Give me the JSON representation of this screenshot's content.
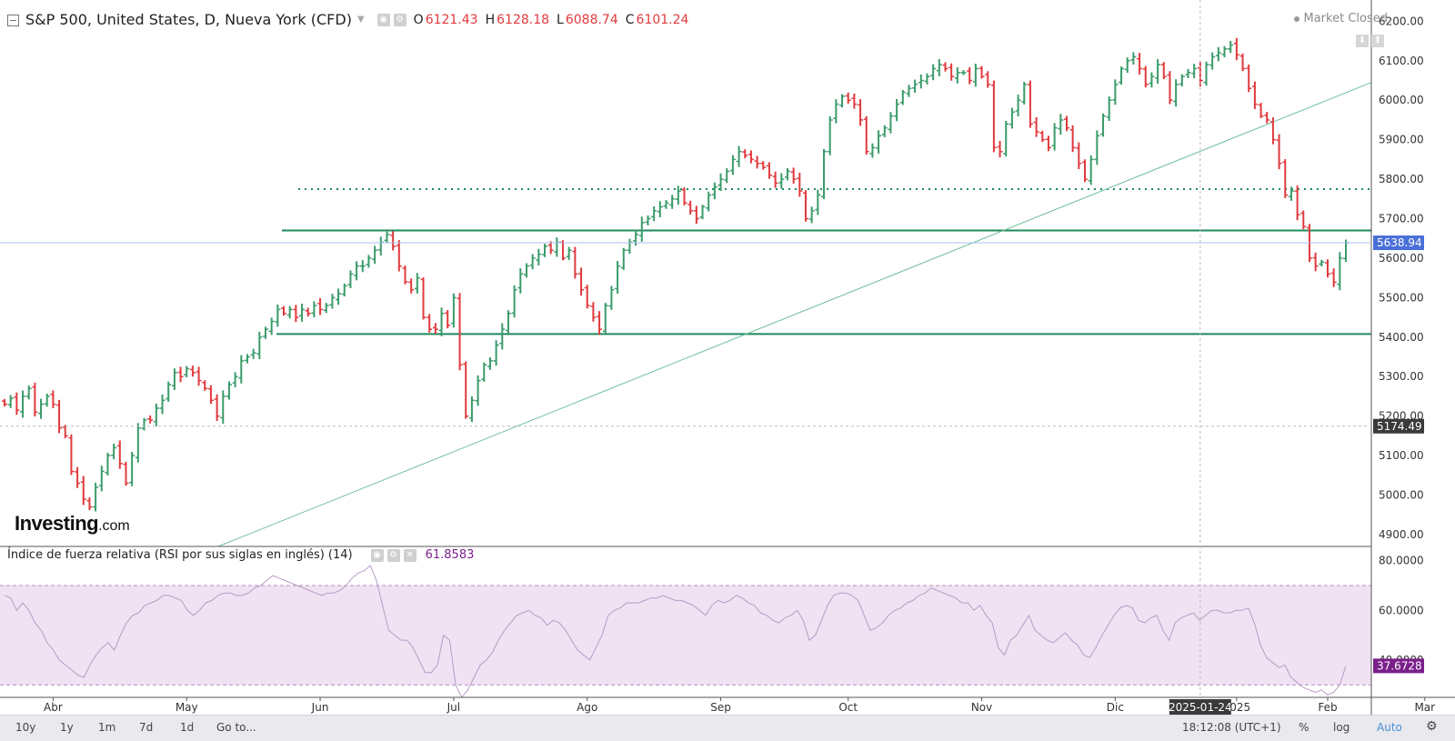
{
  "header": {
    "title": "S&P 500, United States, D, Nueva York (CFD)",
    "ohlc": [
      {
        "label": "O",
        "value": "6121.43"
      },
      {
        "label": "H",
        "value": "6128.18"
      },
      {
        "label": "L",
        "value": "6088.74"
      },
      {
        "label": "C",
        "value": "6101.24"
      }
    ],
    "market_status": "Market Closed"
  },
  "rsi": {
    "title": "Índice de fuerza relativa (RSI por sus siglas en inglés) (14)",
    "value": "61.8583",
    "axis_labels": [
      "80.0000",
      "60.0000",
      "40.0000"
    ],
    "current_label": "37.6728",
    "upper_band": 70,
    "lower_band": 30,
    "band_color": "#f0e2f2",
    "line_color": "#b89bc6"
  },
  "price_axis": {
    "labels": [
      "6200.00",
      "6100.00",
      "6000.00",
      "5900.00",
      "5800.00",
      "5700.00",
      "5600.00",
      "5500.00",
      "5400.00",
      "5300.00",
      "5200.00",
      "5100.00",
      "5000.00",
      "4900.00"
    ],
    "current_price_label": "5638.94",
    "crosshair_price_label": "5174.49"
  },
  "time_axis": {
    "labels": [
      "Abr",
      "May",
      "Jun",
      "Jul",
      "Ago",
      "Sep",
      "Oct",
      "Nov",
      "Dic",
      "2025",
      "Feb",
      "Mar"
    ],
    "crosshair_date": "2025-01-24"
  },
  "toolbar": {
    "ranges": [
      "10y",
      "1y",
      "1m",
      "7d",
      "1d"
    ],
    "goto": "Go to...",
    "time": "18:12:08 (UTC+1)",
    "percent": "%",
    "log": "log",
    "auto": "Auto"
  },
  "logo": {
    "main": "Investing",
    "domain": ".com"
  },
  "colors": {
    "up": "#3a9b6a",
    "down": "#e03a3e",
    "level": "#1e8a5e",
    "trend": "#6fbf9b",
    "current_label_bg": "#4a6fd8",
    "crosshair_label_bg": "#3a3a3a",
    "rsi_label_bg": "#7a1f8a"
  },
  "chart_data": {
    "type": "ohlc",
    "symbol": "S&P 500",
    "interval": "D",
    "ylim": [
      4870,
      6240
    ],
    "horizontal_levels": [
      {
        "price": 5775,
        "style": "dotted"
      },
      {
        "price": 5670,
        "style": "solid"
      },
      {
        "price": 5408,
        "style": "solid"
      }
    ],
    "trendline": {
      "from": {
        "date": "2024-05-20",
        "price": 4870
      },
      "to": {
        "date": "2025-03-14",
        "price": 6045
      }
    },
    "last_close": 5638.94,
    "closes": [
      5230,
      5245,
      5215,
      5250,
      5270,
      5210,
      5230,
      5250,
      5230,
      5170,
      5150,
      5060,
      5030,
      4990,
      4970,
      5020,
      5060,
      5100,
      5120,
      5080,
      5030,
      5100,
      5170,
      5190,
      5190,
      5220,
      5240,
      5280,
      5310,
      5300,
      5320,
      5310,
      5290,
      5270,
      5240,
      5200,
      5250,
      5280,
      5300,
      5340,
      5350,
      5360,
      5400,
      5420,
      5440,
      5470,
      5460,
      5470,
      5450,
      5470,
      5460,
      5480,
      5470,
      5480,
      5500,
      5510,
      5530,
      5560,
      5580,
      5580,
      5600,
      5620,
      5640,
      5660,
      5630,
      5580,
      5540,
      5520,
      5550,
      5450,
      5420,
      5420,
      5460,
      5430,
      5500,
      5330,
      5200,
      5240,
      5290,
      5330,
      5340,
      5380,
      5420,
      5460,
      5520,
      5560,
      5580,
      5600,
      5610,
      5630,
      5620,
      5640,
      5600,
      5620,
      5560,
      5520,
      5480,
      5450,
      5420,
      5480,
      5520,
      5580,
      5620,
      5640,
      5660,
      5690,
      5700,
      5720,
      5730,
      5740,
      5750,
      5770,
      5740,
      5720,
      5700,
      5730,
      5760,
      5780,
      5800,
      5820,
      5850,
      5870,
      5860,
      5850,
      5840,
      5830,
      5810,
      5790,
      5800,
      5820,
      5800,
      5770,
      5700,
      5720,
      5760,
      5870,
      5950,
      5990,
      6010,
      6000,
      5990,
      5950,
      5870,
      5880,
      5910,
      5930,
      5960,
      5990,
      6020,
      6030,
      6040,
      6050,
      6060,
      6080,
      6090,
      6080,
      6060,
      6070,
      6070,
      6050,
      6080,
      6060,
      6040,
      5880,
      5870,
      5940,
      5970,
      6000,
      6040,
      5940,
      5920,
      5900,
      5880,
      5930,
      5950,
      5930,
      5880,
      5840,
      5800,
      5850,
      5910,
      5960,
      6000,
      6040,
      6080,
      6100,
      6110,
      6080,
      6040,
      6060,
      6090,
      6060,
      6000,
      6040,
      6060,
      6070,
      6080,
      6050,
      6090,
      6110,
      6120,
      6130,
      6140,
      6115,
      6080,
      6030,
      5990,
      5960,
      5950,
      5900,
      5840,
      5760,
      5770,
      5710,
      5680,
      5600,
      5580,
      5590,
      5560,
      5539,
      5600,
      5638.94
    ],
    "rsi14": [
      66,
      65,
      60,
      63,
      60,
      55,
      52,
      47,
      44,
      40,
      38,
      36,
      34,
      33,
      38,
      42,
      45,
      47,
      44,
      50,
      55,
      58,
      59,
      62,
      63,
      64,
      66,
      66,
      65,
      64,
      60,
      58,
      60,
      63,
      64,
      66,
      67,
      67,
      66,
      66,
      67,
      69,
      70,
      72,
      74,
      73,
      72,
      71,
      70,
      69,
      68,
      67,
      66,
      67,
      67,
      68,
      70,
      73,
      75,
      76,
      78,
      72,
      62,
      52,
      50,
      48,
      48,
      45,
      40,
      35,
      35,
      38,
      50,
      48,
      30,
      25,
      28,
      33,
      38,
      40,
      43,
      48,
      52,
      55,
      58,
      59,
      60,
      58,
      57,
      54,
      56,
      55,
      52,
      48,
      44,
      42,
      40,
      45,
      50,
      58,
      60,
      61,
      63,
      63,
      63,
      64,
      65,
      65,
      66,
      65,
      64,
      64,
      63,
      62,
      60,
      58,
      62,
      64,
      63,
      64,
      66,
      65,
      63,
      62,
      59,
      58,
      56,
      55,
      57,
      58,
      60,
      56,
      48,
      50,
      56,
      62,
      66,
      67,
      67,
      66,
      64,
      58,
      52,
      53,
      55,
      58,
      60,
      61,
      63,
      64,
      66,
      67,
      69,
      68,
      67,
      66,
      65,
      63,
      63,
      60,
      62,
      58,
      55,
      45,
      42,
      48,
      50,
      54,
      58,
      52,
      50,
      48,
      47,
      49,
      51,
      48,
      46,
      42,
      41,
      45,
      50,
      54,
      58,
      61,
      62,
      61,
      56,
      55,
      57,
      58,
      52,
      48,
      55,
      57,
      58,
      59,
      56,
      58,
      60,
      60,
      59,
      59,
      60,
      60,
      61,
      55,
      46,
      41,
      39,
      37,
      38,
      33,
      31,
      29,
      28,
      27,
      28,
      26,
      27,
      30,
      37.67
    ]
  }
}
